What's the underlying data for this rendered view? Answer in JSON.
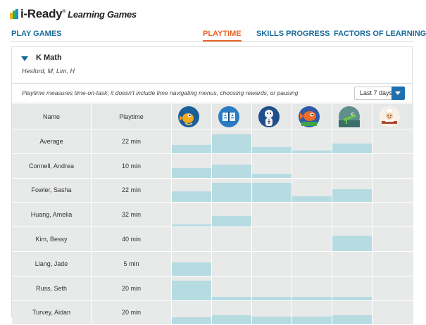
{
  "brand": {
    "name": "i-Ready",
    "trademark": "®",
    "subtitle": "Learning Games"
  },
  "nav": {
    "play_games": "PLAY GAMES",
    "playtime": "PLAYTIME",
    "skills_progress": "SKILLS PROGRESS",
    "factors_of_learning": "FACTORS OF LEARNING"
  },
  "class": {
    "title": "K Math",
    "teachers": "Hesford, M;  Lim, H"
  },
  "filter": {
    "note": "Playtime measures time-on-task; it doesn't include time navigating menus, choosing rewards, or pausing",
    "range_selected": "Last 7 days"
  },
  "table": {
    "headers": {
      "name": "Name",
      "playtime": "Playtime"
    },
    "games": [
      {
        "icon": "fish-game-icon"
      },
      {
        "icon": "book-game-icon"
      },
      {
        "icon": "fraction-character-game-icon"
      },
      {
        "icon": "orange-fish-game-icon"
      },
      {
        "icon": "crocodile-game-icon"
      },
      {
        "icon": "chef-game-icon"
      }
    ],
    "rows": [
      {
        "name": "Average",
        "playtime": "22 min",
        "game_levels": [
          0.35,
          0.8,
          0.25,
          0.12,
          0.4,
          0
        ]
      },
      {
        "name": "Connell, Andrea",
        "playtime": "10 min",
        "game_levels": [
          0.4,
          0.55,
          0.18,
          0,
          0,
          0
        ]
      },
      {
        "name": "Fowler, Sasha",
        "playtime": "22 min",
        "game_levels": [
          0.45,
          0.8,
          0.8,
          0.25,
          0.55,
          0
        ]
      },
      {
        "name": "Huang, Amelia",
        "playtime": "32 min",
        "game_levels": [
          0.1,
          0.45,
          0,
          0,
          0,
          0
        ]
      },
      {
        "name": "Kim, Bessy",
        "playtime": "40 min",
        "game_levels": [
          0,
          0,
          0,
          0,
          0.65,
          0
        ]
      },
      {
        "name": "Liang, Jade",
        "playtime": "5 min",
        "game_levels": [
          0.55,
          0,
          0,
          0,
          0,
          0
        ]
      },
      {
        "name": "Russ, Seth",
        "playtime": "20 min",
        "game_levels": [
          0.82,
          0.15,
          0.15,
          0.15,
          0.15,
          0
        ]
      },
      {
        "name": "Turvey, Aidan",
        "playtime": "20 min",
        "game_levels": [
          0.3,
          0.4,
          0.35,
          0.35,
          0.4,
          0
        ]
      }
    ]
  },
  "colors": {
    "accent": "#e8642a",
    "nav": "#176a9b",
    "bar": "#b6dce2",
    "cell": "#e8e9e9"
  }
}
